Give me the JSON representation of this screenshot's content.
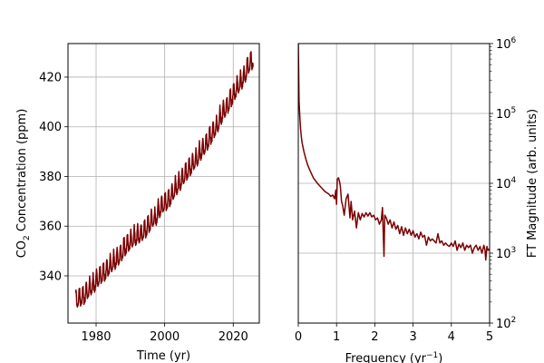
{
  "colors": {
    "line": "#7b0000",
    "grid": "#b0b0b0",
    "axis": "#000000",
    "background": "#ffffff"
  },
  "chart_data": [
    {
      "type": "line",
      "title": "",
      "xlabel": "Time (yr)",
      "ylabel_main": "CO",
      "ylabel_sub": "2",
      "ylabel_rest": " Concentration (ppm)",
      "ylabel": "CO2 Concentration (ppm)",
      "xlim": [
        1971.8,
        2027.6
      ],
      "ylim": [
        321,
        433.5
      ],
      "xticks": [
        1980,
        2000,
        2020
      ],
      "xtick_labels": [
        "1980",
        "2000",
        "2020"
      ],
      "yticks": [
        340,
        360,
        380,
        400,
        420
      ],
      "ytick_labels": [
        "340",
        "360",
        "380",
        "400",
        "420"
      ],
      "grid": true,
      "seasonal_amplitude_ppm": 3.3,
      "series": [
        {
          "name": "CO2",
          "x": [
            1974,
            1975,
            1976,
            1977,
            1978,
            1979,
            1980,
            1981,
            1982,
            1983,
            1984,
            1985,
            1986,
            1987,
            1988,
            1989,
            1990,
            1991,
            1992,
            1993,
            1994,
            1995,
            1996,
            1997,
            1998,
            1999,
            2000,
            2001,
            2002,
            2003,
            2004,
            2005,
            2006,
            2007,
            2008,
            2009,
            2010,
            2011,
            2012,
            2013,
            2014,
            2015,
            2016,
            2017,
            2018,
            2019,
            2020,
            2021,
            2022,
            2023,
            2024,
            2025
          ],
          "values": [
            330.2,
            331.1,
            332.0,
            333.8,
            335.4,
            336.8,
            338.7,
            340.1,
            341.4,
            343.0,
            344.6,
            346.0,
            347.4,
            349.2,
            351.6,
            353.1,
            354.4,
            355.6,
            356.4,
            357.1,
            358.8,
            360.8,
            362.6,
            363.7,
            366.7,
            368.4,
            369.7,
            371.3,
            373.5,
            375.9,
            377.7,
            379.8,
            381.9,
            383.8,
            385.6,
            387.4,
            389.9,
            391.7,
            393.9,
            396.5,
            398.7,
            401.0,
            404.4,
            406.8,
            408.7,
            411.7,
            414.2,
            416.5,
            418.6,
            421.1,
            424.6,
            426.5
          ]
        }
      ]
    },
    {
      "type": "line",
      "title": "",
      "xlabel_main": "Frequency (yr",
      "xlabel_sup": "−1",
      "xlabel_rest": ")",
      "xlabel": "Frequency (yr^-1)",
      "ylabel": "FT Magnitude (arb. units)",
      "yscale": "log",
      "xlim": [
        0,
        5
      ],
      "ylim": [
        100,
        1000000
      ],
      "xticks": [
        0,
        1,
        2,
        3,
        4,
        5
      ],
      "xtick_labels": [
        "0",
        "1",
        "2",
        "3",
        "4",
        "5"
      ],
      "yticks": [
        100,
        1000,
        10000,
        100000,
        1000000
      ],
      "ytick_base": "10",
      "ytick_exponents": [
        "2",
        "3",
        "4",
        "5",
        "6"
      ],
      "yaxis_position": "right",
      "grid": true,
      "series": [
        {
          "name": "FT",
          "x": [
            0.0,
            0.02,
            0.04,
            0.06,
            0.08,
            0.1,
            0.15,
            0.2,
            0.25,
            0.3,
            0.35,
            0.4,
            0.5,
            0.6,
            0.7,
            0.8,
            0.85,
            0.9,
            0.95,
            0.98,
            1.0,
            1.02,
            1.05,
            1.08,
            1.1,
            1.13,
            1.16,
            1.2,
            1.25,
            1.3,
            1.35,
            1.38,
            1.42,
            1.47,
            1.52,
            1.57,
            1.62,
            1.67,
            1.72,
            1.77,
            1.82,
            1.87,
            1.92,
            1.97,
            2.02,
            2.07,
            2.12,
            2.17,
            2.2,
            2.22,
            2.24,
            2.26,
            2.3,
            2.35,
            2.4,
            2.45,
            2.5,
            2.55,
            2.6,
            2.65,
            2.7,
            2.75,
            2.8,
            2.85,
            2.9,
            2.95,
            3.0,
            3.05,
            3.1,
            3.15,
            3.2,
            3.25,
            3.3,
            3.35,
            3.4,
            3.45,
            3.5,
            3.55,
            3.6,
            3.65,
            3.7,
            3.75,
            3.8,
            3.85,
            3.9,
            3.95,
            4.0,
            4.05,
            4.1,
            4.15,
            4.2,
            4.25,
            4.3,
            4.35,
            4.4,
            4.45,
            4.5,
            4.55,
            4.6,
            4.65,
            4.7,
            4.75,
            4.8,
            4.85,
            4.88,
            4.9,
            4.93,
            4.96,
            5.0
          ],
          "values": [
            1000000,
            150000,
            90000,
            60000,
            46000,
            38000,
            28000,
            22000,
            18000,
            15500,
            13500,
            11800,
            10000,
            8700,
            7600,
            7000,
            6500,
            6800,
            6000,
            8000,
            5000,
            11500,
            12000,
            10500,
            9000,
            5500,
            4800,
            3500,
            6000,
            7000,
            3200,
            5500,
            3000,
            4000,
            2300,
            3800,
            3000,
            3700,
            3300,
            3800,
            3400,
            3800,
            3300,
            3500,
            3000,
            3200,
            2600,
            3000,
            4500,
            2000,
            900,
            3500,
            3200,
            2600,
            3000,
            2300,
            2800,
            2200,
            2500,
            1900,
            2400,
            1800,
            2300,
            1900,
            2200,
            1800,
            2100,
            1700,
            1900,
            1600,
            2000,
            1700,
            1800,
            1300,
            1700,
            1500,
            1600,
            1500,
            1400,
            1900,
            1400,
            1500,
            1300,
            1400,
            1300,
            1250,
            1400,
            1250,
            1500,
            1100,
            1350,
            1200,
            1400,
            1100,
            1300,
            1200,
            1300,
            1000,
            1200,
            1300,
            1100,
            1250,
            1000,
            1300,
            1100,
            800,
            1250,
            1100,
            1150
          ]
        }
      ]
    }
  ]
}
